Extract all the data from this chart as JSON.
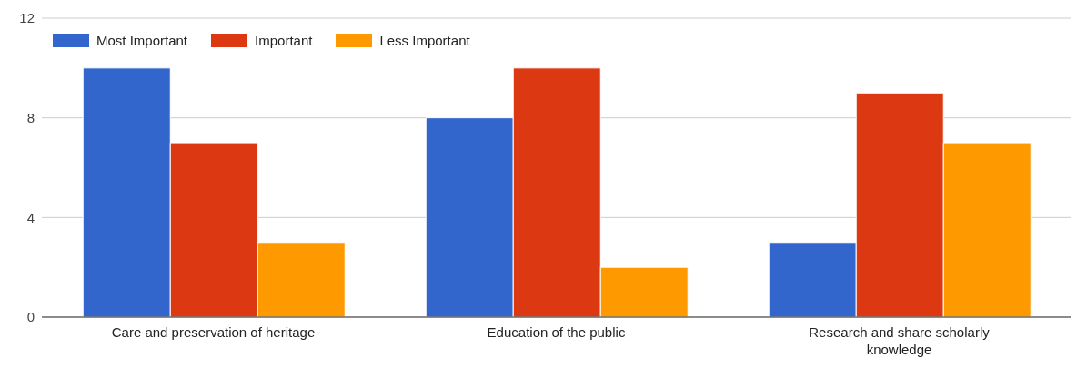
{
  "chart_data": {
    "type": "bar",
    "categories": [
      "Care and preservation of heritage",
      "Education of the public",
      "Research and share scholarly knowledge"
    ],
    "series": [
      {
        "name": "Most Important",
        "color": "#3366cc",
        "values": [
          10,
          8,
          3
        ]
      },
      {
        "name": "Important",
        "color": "#dc3912",
        "values": [
          7,
          10,
          9
        ]
      },
      {
        "name": "Less Important",
        "color": "#ff9900",
        "values": [
          3,
          2,
          7
        ]
      }
    ],
    "ylim": [
      0,
      12
    ],
    "yticks": [
      0,
      4,
      8,
      12
    ],
    "grid": "y",
    "legend": "top left"
  }
}
